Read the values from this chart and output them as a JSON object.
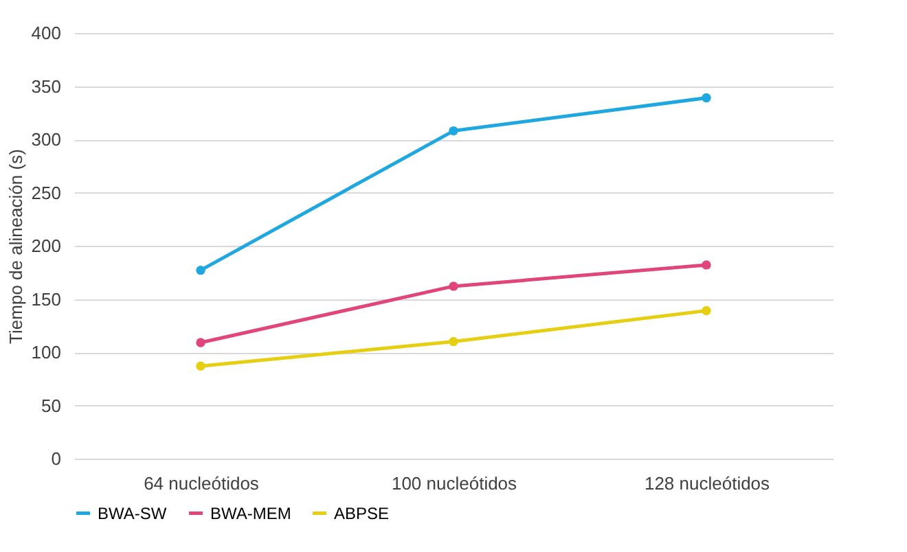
{
  "chart_data": {
    "type": "line",
    "ylabel": "Tiempo de alineación (s)",
    "categories": [
      "64 nucleótidos",
      "100 nucleótidos",
      "128 nucleótidos"
    ],
    "series": [
      {
        "name": "BWA-SW",
        "color": "#1fa7e0",
        "values": [
          177,
          308,
          339
        ]
      },
      {
        "name": "BWA-MEM",
        "color": "#e0457b",
        "values": [
          109,
          162,
          182
        ]
      },
      {
        "name": "ABPSE",
        "color": "#e6cf12",
        "values": [
          87,
          110,
          139
        ]
      }
    ],
    "ylim": [
      0,
      400
    ],
    "yticks": [
      0,
      50,
      100,
      150,
      200,
      250,
      300,
      350,
      400
    ],
    "grid": "y",
    "legend": "bottom",
    "marker": "circle",
    "line_style": "solid"
  }
}
